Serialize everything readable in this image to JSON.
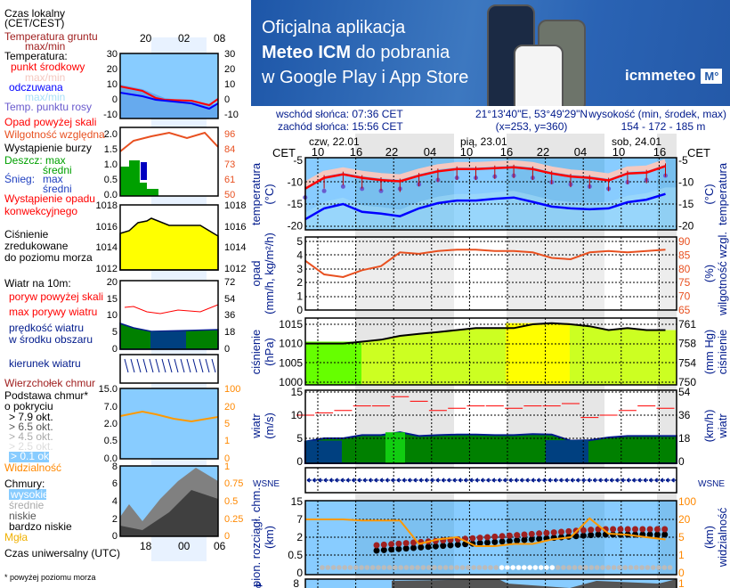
{
  "banner": {
    "line1": "Oficjalna aplikacja",
    "line2_bold": "Meteo ICM",
    "line2_rest": " do pobrania",
    "line3": "w Google Play i App Store",
    "logo": "icmmeteo",
    "logo_badge": "M°"
  },
  "info": {
    "sunrise": "wschód słońca: 07:36 CET",
    "sunset": "zachód słońca: 15:56 CET",
    "coords": "21°13'40\"E, 53°49'29\"N",
    "grid": "(x=253,  y=360)",
    "elevation_label": "wysokość (min, środek, max)",
    "elevation": "154 - 172 - 185 m"
  },
  "legend": {
    "local_time": "Czas lokalny",
    "local_time2": "(CET/CEST)",
    "ground_temp": "Temperatura gruntu",
    "ground_temp_mm": "max/min",
    "temperature": "Temperatura:",
    "mid_point": "punkt środkowy",
    "mid_mm": "max/min",
    "perceived": "odczuwana",
    "perceived_mm": "max/min",
    "dew": "Temp. punktu rosy",
    "precip_over": "Opad powyżej skali",
    "humidity": "Wilgotność względna",
    "storm": "Wystąpienie burzy",
    "rain": "Deszcz: max",
    "rain_avg": "średni",
    "snow": "Śnieg:",
    "snow_max": "max",
    "snow_avg": "średni",
    "convective": "Wystąpienie opadu",
    "convective2": "konwekcyjnego",
    "pressure1": "Ciśnienie",
    "pressure2": "zredukowane",
    "pressure3": "do poziomu morza",
    "wind": "Wiatr na 10m:",
    "gust_over": "poryw powyżej skali",
    "gust_max": "max porywy wiatru",
    "wind_speed": "prędkość wiatru",
    "wind_speed2": "w środku obszaru",
    "wind_dir": "kierunek wiatru",
    "cloud_top": "Wierzchołek chmur",
    "cloud_base": "Podstawa chmur*",
    "cloud_base2": "o pokryciu",
    "okt79": "> 7.9 okt.",
    "okt65": "> 6.5 okt.",
    "okt45": "> 4.5 okt.",
    "okt25": "> 2.5 okt.",
    "okt01": "> 0.1 okt.",
    "visibility": "Widzialność",
    "clouds": "Chmury:",
    "high": "wysokie",
    "mid": "średnie",
    "low": "niskie",
    "very_low": "bardzo niskie",
    "fog": "Mgła",
    "utc": "Czas uniwersalny (UTC)",
    "footnote": "* powyżej poziomu morza",
    "top_times": [
      "20",
      "02",
      "08"
    ],
    "bottom_times": [
      "18",
      "00",
      "06"
    ],
    "temp_ticks": [
      "30",
      "20",
      "10",
      "0",
      "-10"
    ],
    "precip_ticks": [
      "2.0",
      "1.5",
      "1.0",
      "0.5",
      "0.0"
    ],
    "hum_ticks": [
      "96",
      "84",
      "73",
      "61",
      "50"
    ],
    "press_ticks": [
      "1018",
      "1016",
      "1014",
      "1012"
    ],
    "wind_ticks": [
      "20",
      "15",
      "10",
      "5",
      "0"
    ],
    "wind_kmh_ticks": [
      "72",
      "54",
      "36",
      "18",
      "0"
    ],
    "base_ticks": [
      "15.0",
      "7.0",
      "2.0",
      "0.5",
      "0.0"
    ],
    "vis_ticks": [
      "100",
      "20",
      "5",
      "1",
      "0"
    ],
    "cover_ticks": [
      "8",
      "6",
      "4",
      "2",
      "0"
    ],
    "cover_frac_ticks": [
      "1",
      "0.75",
      "0.5",
      "0.25",
      "0"
    ]
  },
  "axis": {
    "cet": "CET",
    "days": [
      "czw, 22.01",
      "pią, 23.01",
      "sob, 24.01"
    ],
    "hours": [
      "10",
      "16",
      "22",
      "04",
      "10",
      "16",
      "22",
      "04",
      "10",
      "16"
    ],
    "temp_title": "temperatura",
    "temp_unit": "(°C)",
    "precip_title": "opad",
    "precip_unit": "(mm/h, kg/m²/h)",
    "hum_title": "wilgotność wzgl.",
    "hum_unit": "(%)",
    "press_title": "ciśnienie",
    "press_unit": "(hPa)",
    "press_unit_r": "(mm Hg)",
    "wind_title": "wiatr",
    "wind_unit": "(m/s)",
    "wind_unit_r": "(km/h)",
    "compass": "WSNE",
    "cloud_title": "pion. rozciągł. chm.",
    "cloud_unit": "(km)",
    "vis_title": "widzialność",
    "vis_unit": "(km)",
    "cover_left": "e"
  },
  "chart_data": [
    {
      "type": "line",
      "title": "temperatura",
      "ylabel": "(°C)",
      "ylim": [
        -21,
        -5
      ],
      "yticks": [
        -5,
        -10,
        -15,
        -20
      ],
      "x_hours_from_22_01_00_CET": [
        8,
        11,
        14,
        17,
        20,
        23,
        26,
        29,
        32,
        35,
        38,
        41,
        44,
        47,
        50,
        53,
        56,
        59,
        62,
        65
      ],
      "series": [
        {
          "name": "punkt środkowy",
          "color": "#ff0000",
          "values": [
            -11.5,
            -9,
            -8.2,
            -9,
            -9.5,
            -9.8,
            -8.5,
            -7.5,
            -7,
            -7,
            -6.8,
            -6.6,
            -7,
            -8,
            -8.7,
            -9,
            -9.6,
            -8,
            -7.8,
            -6.3
          ]
        },
        {
          "name": "odczuwana",
          "color": "#0000ff",
          "values": [
            -18.5,
            -16,
            -15,
            -16.8,
            -17.2,
            -17.8,
            -16,
            -14.8,
            -14.2,
            -14.2,
            -13.8,
            -13.5,
            -14.5,
            -15.6,
            -16,
            -16.2,
            -16,
            -14.6,
            -14,
            -12.7
          ]
        },
        {
          "name": "Temp. punktu rosy",
          "color": "#6a5acd",
          "values": [
            -13.5,
            -12,
            -11,
            -11.5,
            -12,
            -11.5,
            -10.5,
            -9.5,
            -9,
            -9,
            -8.7,
            -8.5,
            -9,
            -10,
            -10.5,
            -11,
            -11.5,
            -10,
            -9.5,
            -8.5
          ]
        }
      ]
    },
    {
      "type": "line",
      "title": "wilgotność wzgl.",
      "ylabel": "(%)",
      "ylim": [
        65,
        90
      ],
      "yticks": [
        65,
        70,
        75,
        80,
        85,
        90
      ],
      "precip_ylim": [
        0,
        5
      ],
      "precip_yticks": [
        0,
        1,
        2,
        3,
        4,
        5
      ],
      "series": [
        {
          "name": "wilgotność względna",
          "color": "#e85020",
          "values": [
            83,
            78,
            77,
            79.5,
            81,
            86,
            85.5,
            86.5,
            87,
            87,
            86.5,
            86.5,
            86,
            84,
            83.5,
            86,
            86.5,
            86,
            86.5,
            87
          ]
        }
      ]
    },
    {
      "type": "area",
      "title": "ciśnienie",
      "ylabel": "(hPa)",
      "ylim": [
        998,
        1017
      ],
      "yticks": [
        1000,
        1005,
        1010,
        1015
      ],
      "yticks_right_mmHg": [
        750,
        754,
        758,
        761
      ],
      "series": [
        {
          "name": "ciśnienie",
          "color": "#000000",
          "values": [
            1010,
            1010,
            1010,
            1010.5,
            1011,
            1012,
            1012.5,
            1013,
            1013.5,
            1014,
            1014,
            1014,
            1015,
            1015.3,
            1015,
            1014.5,
            1013.5,
            1014,
            1013.5,
            1013.5
          ]
        }
      ]
    },
    {
      "type": "area",
      "title": "wiatr",
      "ylabel": "(m/s)",
      "ylim": [
        0,
        15
      ],
      "yticks": [
        0,
        5,
        10,
        15
      ],
      "yticks_right_kmh": [
        0,
        18,
        36,
        54
      ],
      "series": [
        {
          "name": "prędkość wiatru",
          "color": "#001a8c",
          "values": [
            4.3,
            5,
            5,
            5.7,
            5.7,
            6.3,
            5.5,
            5.7,
            5.8,
            5.8,
            5.7,
            5.7,
            5.9,
            5.8,
            4.5,
            4.6,
            5.2,
            5.5,
            5.5,
            5.5
          ]
        },
        {
          "name": "max porywy wiatru",
          "color": "#ff0000",
          "values": [
            10,
            10.5,
            11,
            12,
            12,
            14,
            13,
            11,
            11.5,
            12,
            12,
            11.5,
            12,
            12,
            12.5,
            9.5,
            10,
            11,
            12,
            11.5
          ]
        }
      ]
    },
    {
      "type": "line",
      "title": "widzialność",
      "ylabel": "(km)",
      "yticks_cloud_km": [
        0,
        0.5,
        2,
        7,
        15
      ],
      "yticks_vis_km": [
        0,
        1,
        5,
        20,
        100
      ],
      "series": [
        {
          "name": "widzialność",
          "color": "#ff9900",
          "values": [
            20,
            20,
            20,
            19,
            19,
            19,
            3.5,
            4.5,
            5,
            3,
            3,
            3.5,
            3.5,
            4.5,
            5,
            25,
            8,
            7,
            5,
            4.5
          ]
        }
      ]
    }
  ],
  "colors": {
    "sky": "#88ccff",
    "night": "#e6e6e6",
    "pressure": "#ffff00",
    "pressure_low": "#66ff00",
    "wind_fill": "#008000",
    "wind_low": "#004080"
  }
}
